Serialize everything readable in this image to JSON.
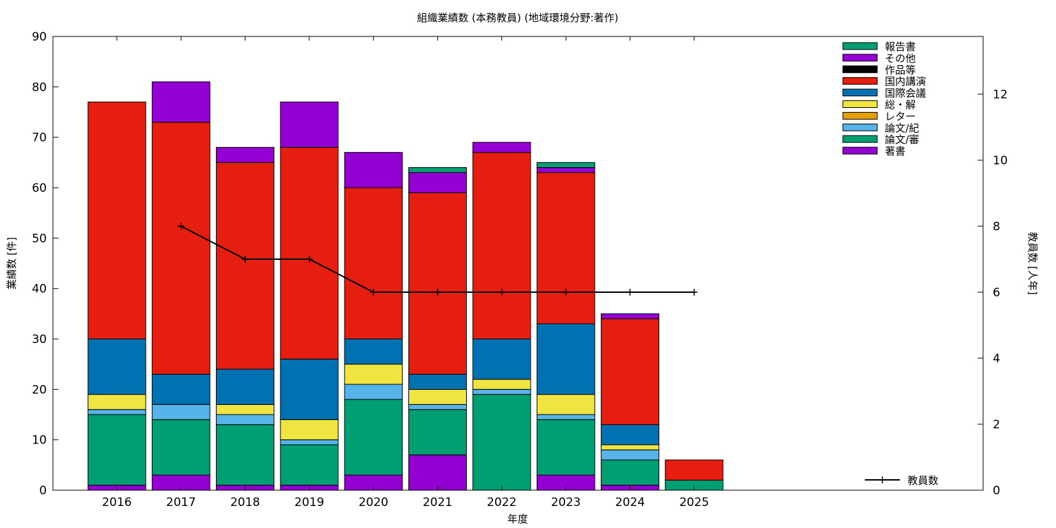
{
  "chart_data": {
    "type": "bar",
    "stacked": true,
    "title": "組織業績数 (本務教員) (地域環境分野:著作)",
    "xlabel": "年度",
    "ylabel": "業績数 [件]",
    "y2label": "教員数 [人年]",
    "categories": [
      "2016",
      "2017",
      "2018",
      "2019",
      "2020",
      "2021",
      "2022",
      "2023",
      "2024",
      "2025"
    ],
    "ylim": [
      0,
      90
    ],
    "y2lim": [
      0,
      13.75
    ],
    "yticks": [
      0,
      10,
      20,
      30,
      40,
      50,
      60,
      70,
      80,
      90
    ],
    "y2ticks": [
      0,
      2,
      4,
      6,
      8,
      10,
      12
    ],
    "grid": false,
    "legend_position": "top-right",
    "series": [
      {
        "name": "著書",
        "color": "#9400d3",
        "values": [
          1,
          3,
          1,
          1,
          3,
          7,
          0,
          3,
          1,
          0
        ]
      },
      {
        "name": "論文/審",
        "color": "#009e73",
        "values": [
          14,
          11,
          12,
          8,
          15,
          9,
          19,
          11,
          5,
          2
        ]
      },
      {
        "name": "論文/紀",
        "color": "#56b4e9",
        "values": [
          1,
          3,
          2,
          1,
          3,
          1,
          1,
          1,
          2,
          0
        ]
      },
      {
        "name": "レター",
        "color": "#e69f00",
        "values": [
          0,
          0,
          0,
          0,
          0,
          0,
          0,
          0,
          0,
          0
        ]
      },
      {
        "name": "総・解",
        "color": "#f0e442",
        "values": [
          3,
          0,
          2,
          4,
          4,
          3,
          2,
          4,
          1,
          0
        ]
      },
      {
        "name": "国際会議",
        "color": "#0072b2",
        "values": [
          11,
          6,
          7,
          12,
          5,
          3,
          8,
          14,
          4,
          0
        ]
      },
      {
        "name": "国内講演",
        "color": "#e51e10",
        "values": [
          47,
          50,
          41,
          42,
          30,
          36,
          37,
          30,
          21,
          4
        ]
      },
      {
        "name": "作品等",
        "color": "#000000",
        "values": [
          0,
          0,
          0,
          0,
          0,
          0,
          0,
          0,
          0,
          0
        ]
      },
      {
        "name": "その他",
        "color": "#9400d3",
        "values": [
          0,
          8,
          3,
          9,
          7,
          4,
          2,
          1,
          1,
          0
        ]
      },
      {
        "name": "報告書",
        "color": "#009e73",
        "values": [
          0,
          0,
          0,
          0,
          0,
          1,
          0,
          1,
          0,
          0
        ]
      }
    ],
    "line_series": {
      "name": "教員数",
      "color": "#000000",
      "axis": "y2",
      "x": [
        "2017",
        "2018",
        "2019",
        "2020",
        "2021",
        "2022",
        "2023",
        "2024",
        "2025"
      ],
      "values": [
        8,
        7,
        7,
        6,
        6,
        6,
        6,
        6,
        6
      ]
    }
  }
}
